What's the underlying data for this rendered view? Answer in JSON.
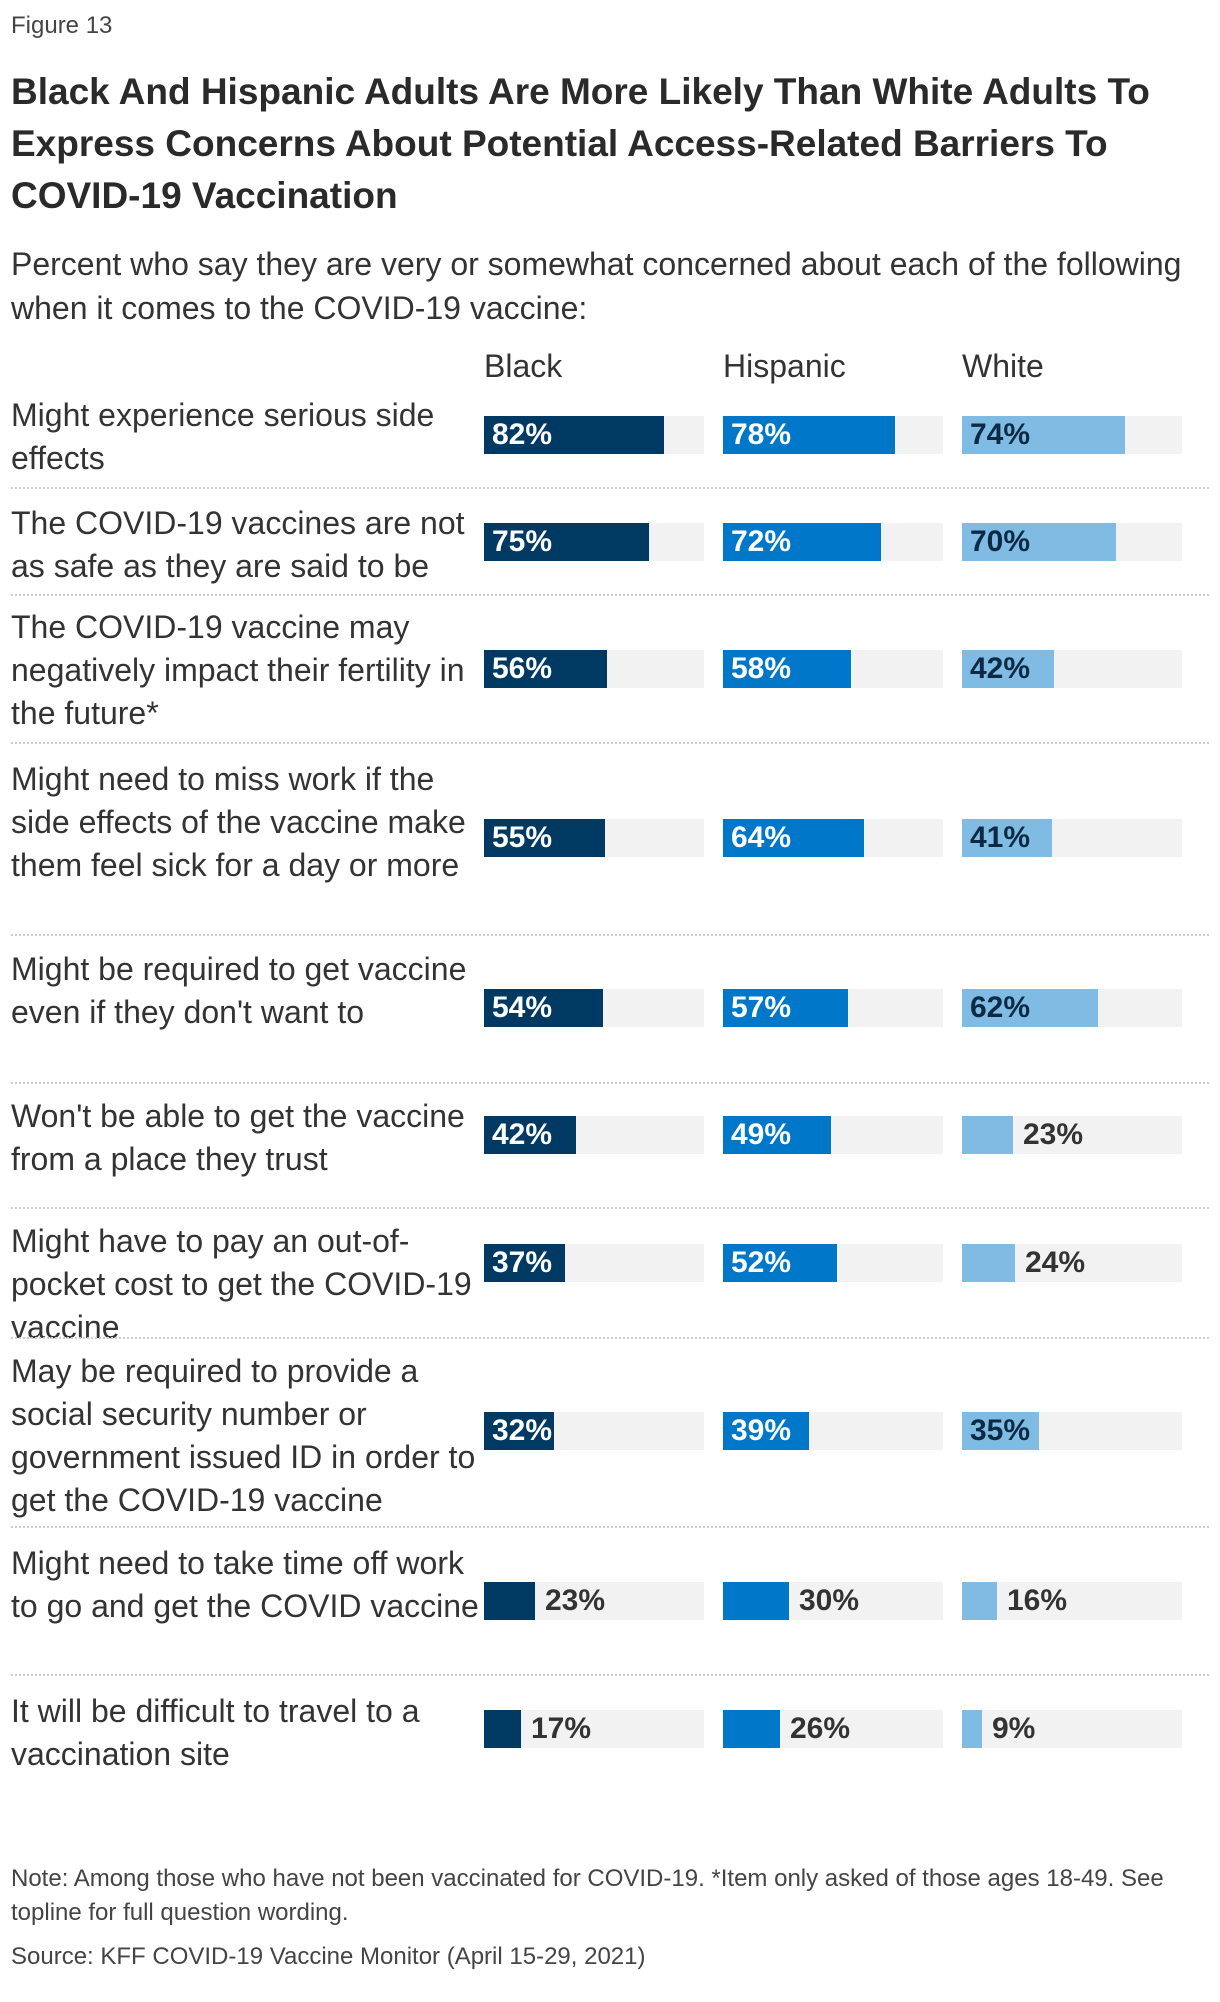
{
  "figure_label": "Figure 13",
  "chart_data": {
    "type": "bar",
    "title": "Black And Hispanic Adults Are More Likely Than White Adults To Express Concerns About Potential Access-Related Barriers To COVID-19 Vaccination",
    "subtitle": "Percent who say they are very or somewhat concerned about each of the following when it comes to the COVID-19 vaccine:",
    "xlim": [
      0,
      100
    ],
    "unit": "%",
    "categories": [
      "Might experience serious side effects",
      "The COVID-19 vaccines are not as safe as they are said to be",
      "The COVID-19 vaccine may negatively impact their fertility in the future*",
      "Might need to miss work if the side effects of the vaccine make them feel sick for a day or more",
      "Might be required to get vaccine even if they don't want to",
      "Won't be able to get the vaccine from a place they trust",
      "Might have to pay an out-of-pocket cost to get the COVID-19 vaccine",
      "May be required to provide a social security number or government issued ID in order to get the COVID-19 vaccine",
      "Might need to take time off work to go and get the COVID vaccine",
      "It will be difficult to travel to a vaccination site"
    ],
    "series": [
      {
        "name": "Black",
        "color": "#003a63",
        "values": [
          82,
          75,
          56,
          55,
          54,
          42,
          37,
          32,
          23,
          17
        ]
      },
      {
        "name": "Hispanic",
        "color": "#0077c8",
        "values": [
          78,
          72,
          58,
          64,
          57,
          49,
          52,
          39,
          30,
          26
        ]
      },
      {
        "name": "White",
        "color": "#80bbe4",
        "values": [
          74,
          70,
          42,
          41,
          62,
          23,
          24,
          35,
          16,
          9
        ]
      }
    ]
  },
  "note": "Note: Among those who have not been vaccinated for COVID-19. *Item only asked of those ages 18-49. See topline for full question wording.",
  "source": "Source: KFF COVID-19 Vaccine Monitor (April 15-29, 2021)"
}
